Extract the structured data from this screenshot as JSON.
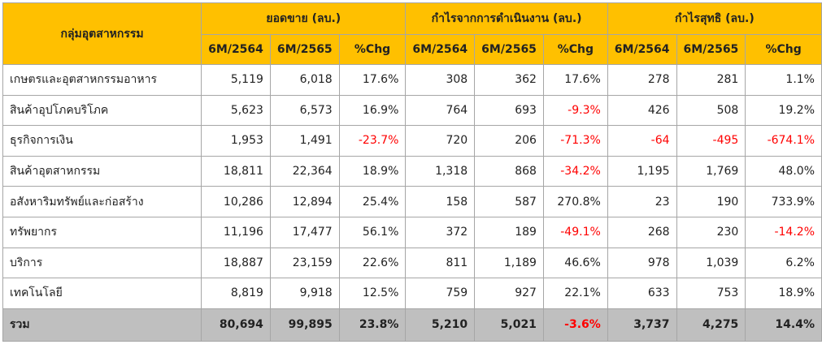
{
  "header": {
    "group_label": "กลุ่มอุตสาหกรรม",
    "groups": [
      "ยอดขาย (ลบ.)",
      "กำไรจากการดำเนินงาน (ลบ.)",
      "กำไรสุทธิ (ลบ.)"
    ],
    "subcolumns": [
      "6M/2564",
      "6M/2565",
      "%Chg",
      "6M/2564",
      "6M/2565",
      "%Chg",
      "6M/2564",
      "6M/2565",
      "%Chg"
    ]
  },
  "table": {
    "rows": [
      [
        "เกษตรและอุตสาหกรรมอาหาร",
        "5,119",
        "6,018",
        "17.6%",
        "308",
        "362",
        "17.6%",
        "278",
        "281",
        "1.1%"
      ],
      [
        "สินค้าอุปโภคบริโภค",
        "5,623",
        "6,573",
        "16.9%",
        "764",
        "693",
        "-9.3%",
        "426",
        "508",
        "19.2%"
      ],
      [
        "ธุรกิจการเงิน",
        "1,953",
        "1,491",
        "-23.7%",
        "720",
        "206",
        "-71.3%",
        "-64",
        "-495",
        "-674.1%"
      ],
      [
        "สินค้าอุตสาหกรรม",
        "18,811",
        "22,364",
        "18.9%",
        "1,318",
        "868",
        "-34.2%",
        "1,195",
        "1,769",
        "48.0%"
      ],
      [
        "อสังหาริมทรัพย์และก่อสร้าง",
        "10,286",
        "12,894",
        "25.4%",
        "158",
        "587",
        "270.8%",
        "23",
        "190",
        "733.9%"
      ],
      [
        "ทรัพยากร",
        "11,196",
        "17,477",
        "56.1%",
        "372",
        "189",
        "-49.1%",
        "268",
        "230",
        "-14.2%"
      ],
      [
        "บริการ",
        "18,887",
        "23,159",
        "22.6%",
        "811",
        "1,189",
        "46.6%",
        "978",
        "1,039",
        "6.2%"
      ],
      [
        "เทคโนโลยี",
        "8,819",
        "9,918",
        "12.5%",
        "759",
        "927",
        "22.1%",
        "633",
        "753",
        "18.9%"
      ]
    ],
    "total": [
      "รวม",
      "80,694",
      "99,895",
      "23.8%",
      "5,210",
      "5,021",
      "-3.6%",
      "3,737",
      "4,275",
      "14.4%"
    ]
  }
}
